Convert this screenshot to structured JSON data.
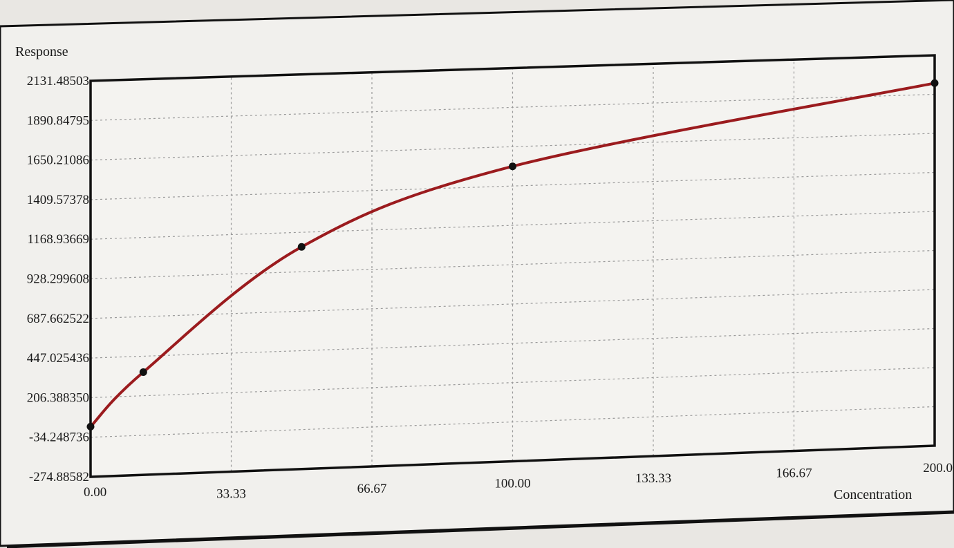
{
  "chart_data": {
    "type": "line",
    "title": "",
    "xlabel": "Concentration",
    "ylabel": "Response",
    "xlim": [
      0,
      200
    ],
    "ylim": [
      -274.88582,
      2131.48503
    ],
    "x_ticks": [
      "0.00",
      "33.33",
      "66.67",
      "100.00",
      "133.33",
      "166.67",
      "200.0"
    ],
    "y_ticks": [
      "-274.88582",
      "-34.248736",
      "206.388350",
      "447.025436",
      "687.662522",
      "928.299608",
      "1168.93669",
      "1409.57378",
      "1650.21086",
      "1890.84795",
      "2131.48503"
    ],
    "grid": true,
    "legend": "none",
    "series": [
      {
        "points": [
          {
            "x": 0,
            "y": 30
          },
          {
            "x": 12.5,
            "y": 350
          },
          {
            "x": 50,
            "y": 1080
          },
          {
            "x": 100,
            "y": 1530
          },
          {
            "x": 200,
            "y": 1960
          }
        ]
      }
    ],
    "colors": {
      "curve": "#9b1b1e",
      "points": "#111111",
      "grid": "#9a9a9a",
      "axes": "#111111",
      "plot_bg": "#f4f3f0",
      "frame_bg": "#f1f0ed"
    }
  }
}
